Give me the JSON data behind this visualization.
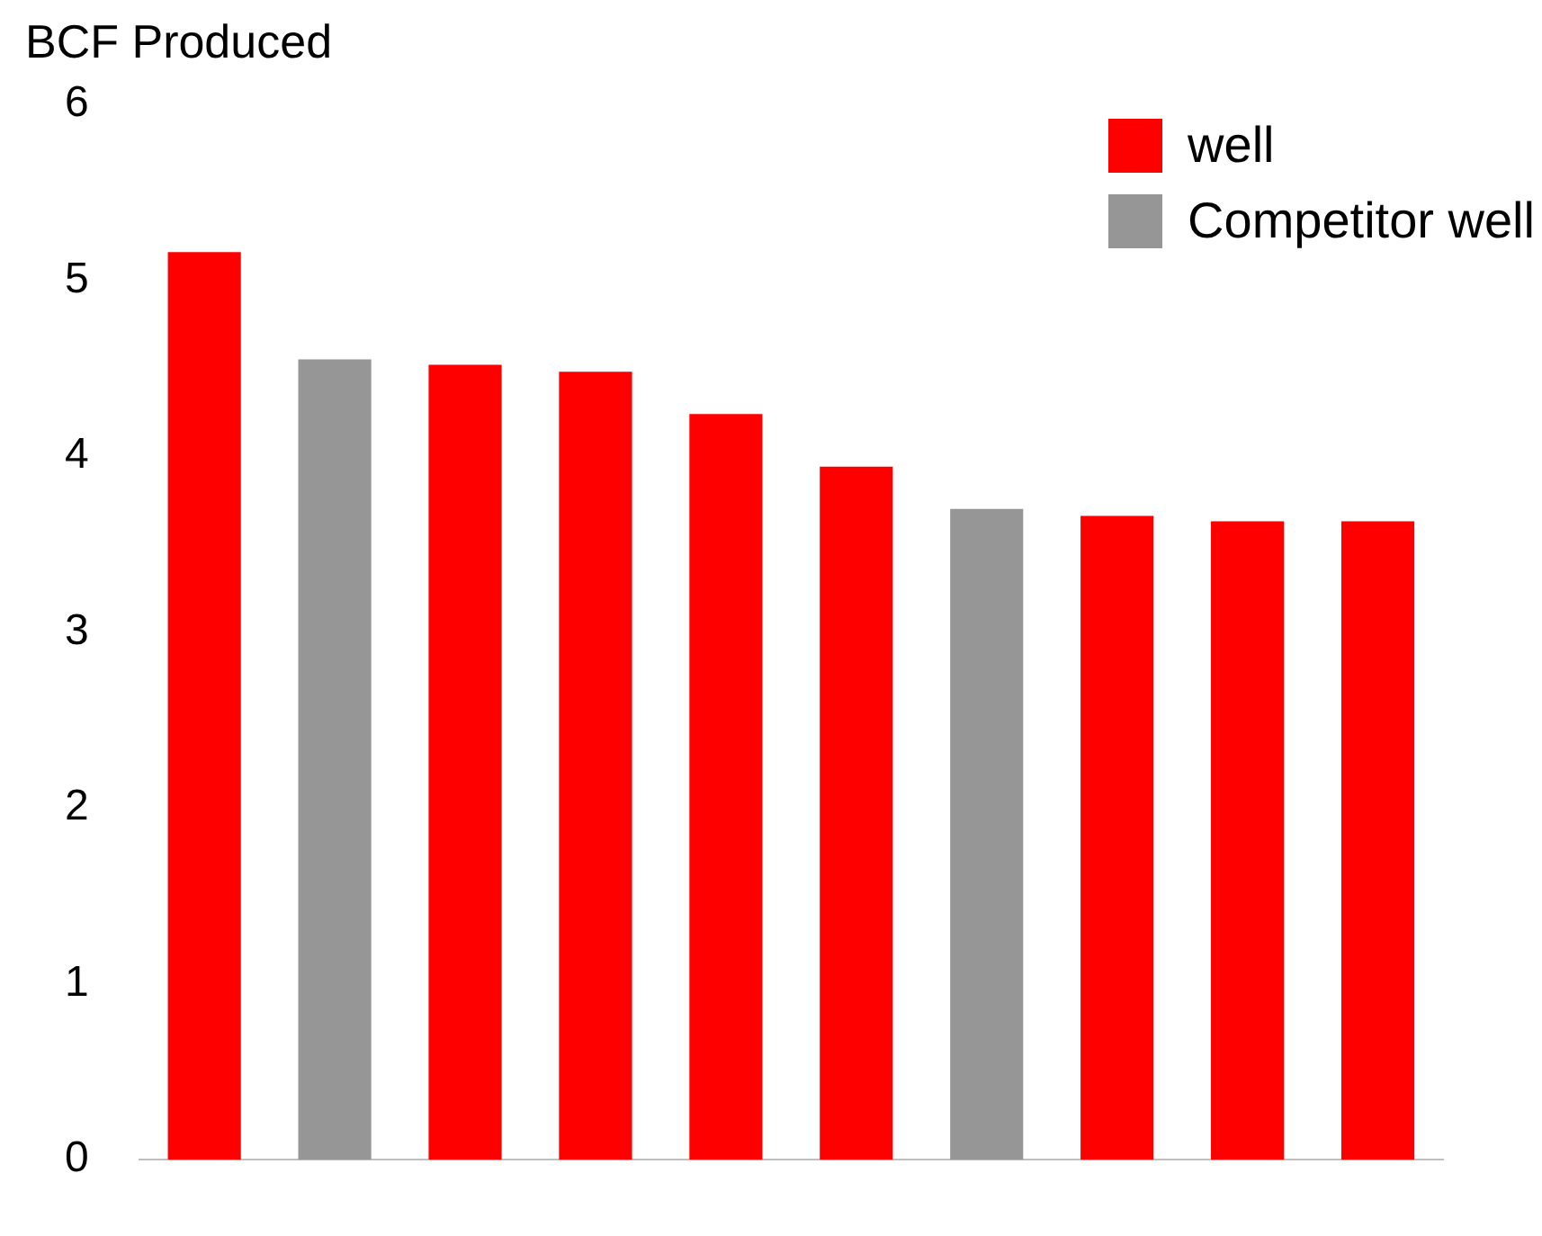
{
  "chart_data": {
    "type": "bar",
    "ylabel": "BCF Produced",
    "categories": [
      null,
      null,
      null,
      null,
      null,
      null,
      null,
      null,
      null,
      null
    ],
    "series": [
      {
        "name": "well",
        "color": "#ff0000",
        "values": [
          5.16,
          null,
          4.52,
          4.48,
          4.24,
          3.94,
          null,
          3.66,
          3.63,
          3.63
        ]
      },
      {
        "name": "Competitor well",
        "color": "#969696",
        "values": [
          null,
          4.55,
          null,
          null,
          null,
          null,
          3.7,
          null,
          null,
          null
        ]
      }
    ],
    "ylim": [
      0,
      6
    ],
    "yticks": [
      0,
      1,
      2,
      3,
      4,
      5,
      6
    ],
    "grid": false,
    "legend": "top right"
  }
}
